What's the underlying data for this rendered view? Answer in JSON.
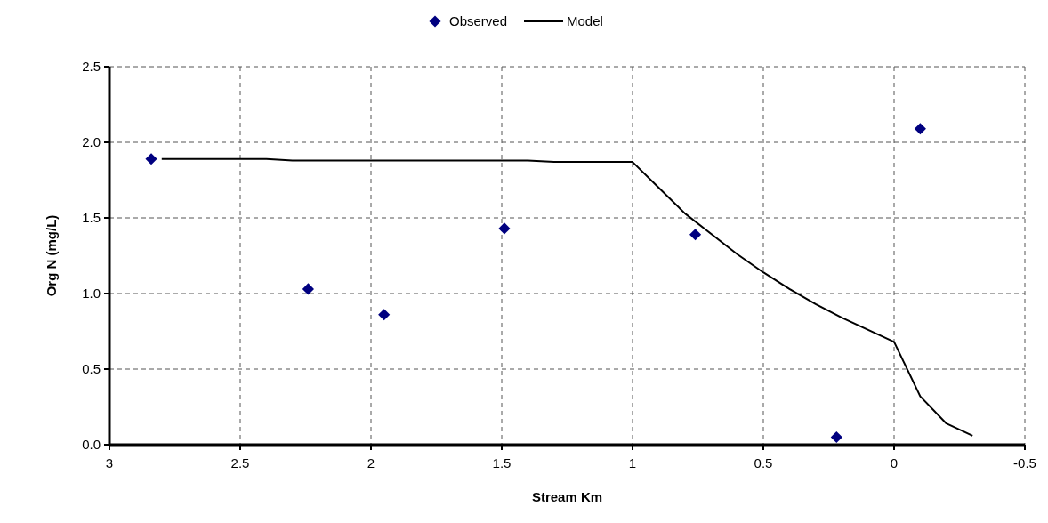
{
  "chart_data": {
    "type": "scatter",
    "xlabel": "Stream Km",
    "ylabel": "Org N (mg/L)",
    "xlim": [
      3,
      -0.5
    ],
    "xticks": [
      3,
      2.5,
      2,
      1.5,
      1,
      0.5,
      0,
      -0.5
    ],
    "ylim": [
      0,
      2.5
    ],
    "yticks": [
      {
        "value": 0,
        "label": "0.0"
      },
      {
        "value": 0.5,
        "label": "0.5"
      },
      {
        "value": 1,
        "label": "1.0"
      },
      {
        "value": 1.5,
        "label": "1.5"
      },
      {
        "value": 2,
        "label": "2.0"
      },
      {
        "value": 2.5,
        "label": "2.5"
      }
    ],
    "grid": true,
    "legend": "top",
    "series": [
      {
        "name": "Observed",
        "type": "scatter",
        "marker": "diamond",
        "color": "#000080",
        "x": [
          2.84,
          2.24,
          1.95,
          1.49,
          0.76,
          0.22,
          -0.1
        ],
        "values": [
          1.89,
          1.03,
          0.86,
          1.43,
          1.39,
          0.05,
          2.09
        ]
      },
      {
        "name": "Model",
        "type": "line",
        "marker": "none",
        "color": "#000000",
        "x": [
          2.8,
          2.4,
          2.3,
          1.4,
          1.3,
          1.0,
          0.9,
          0.8,
          0.6,
          0.5,
          0.4,
          0.3,
          0.2,
          0.0,
          -0.1,
          -0.2,
          -0.3
        ],
        "values": [
          1.89,
          1.89,
          1.88,
          1.88,
          1.87,
          1.87,
          1.7,
          1.53,
          1.26,
          1.14,
          1.03,
          0.93,
          0.84,
          0.68,
          0.32,
          0.14,
          0.06
        ]
      }
    ]
  }
}
